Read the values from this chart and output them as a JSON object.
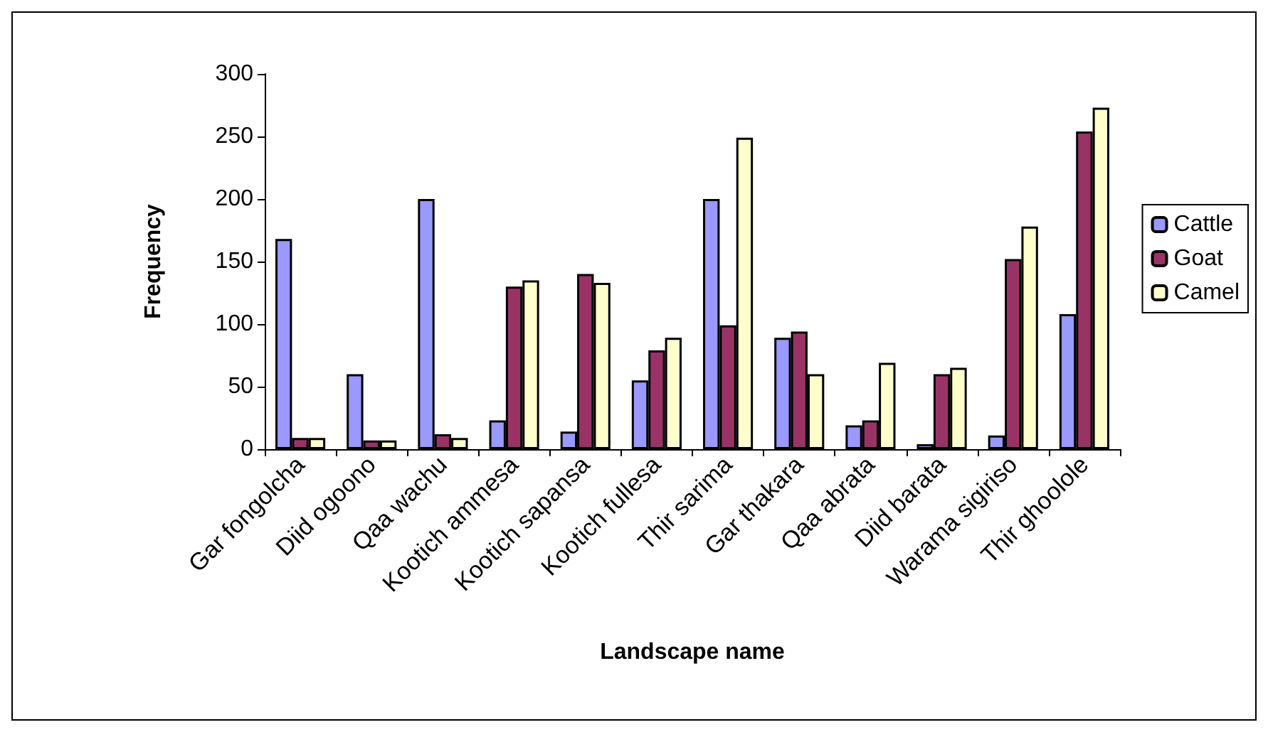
{
  "chart_data": {
    "type": "bar",
    "xlabel": "Landscape name",
    "ylabel": "Frequency",
    "categories": [
      "Gar fongolcha",
      "Diid ogoono",
      "Qaa wachu",
      "Kootich ammesa",
      "Kootich sapansa",
      "Kootich fullesa",
      "Thir sarima",
      "Gar thakara",
      "Qaa abrata",
      "Diid barata",
      "Warama sigiriso",
      "Thir ghoolole"
    ],
    "series": [
      {
        "name": "Cattle",
        "color": "#9999ff",
        "values": [
          168,
          60,
          200,
          23,
          14,
          55,
          200,
          89,
          19,
          4,
          11,
          108
        ]
      },
      {
        "name": "Goat",
        "color": "#993366",
        "values": [
          9,
          7,
          12,
          130,
          140,
          79,
          99,
          94,
          23,
          60,
          152,
          254
        ]
      },
      {
        "name": "Camel",
        "color": "#ffffcc",
        "values": [
          9,
          7,
          9,
          135,
          133,
          89,
          249,
          60,
          69,
          65,
          178,
          273
        ]
      }
    ],
    "ylim": [
      0,
      300
    ],
    "yticks": [
      0,
      50,
      100,
      150,
      200,
      250,
      300
    ],
    "grid": false,
    "legend": "right"
  }
}
